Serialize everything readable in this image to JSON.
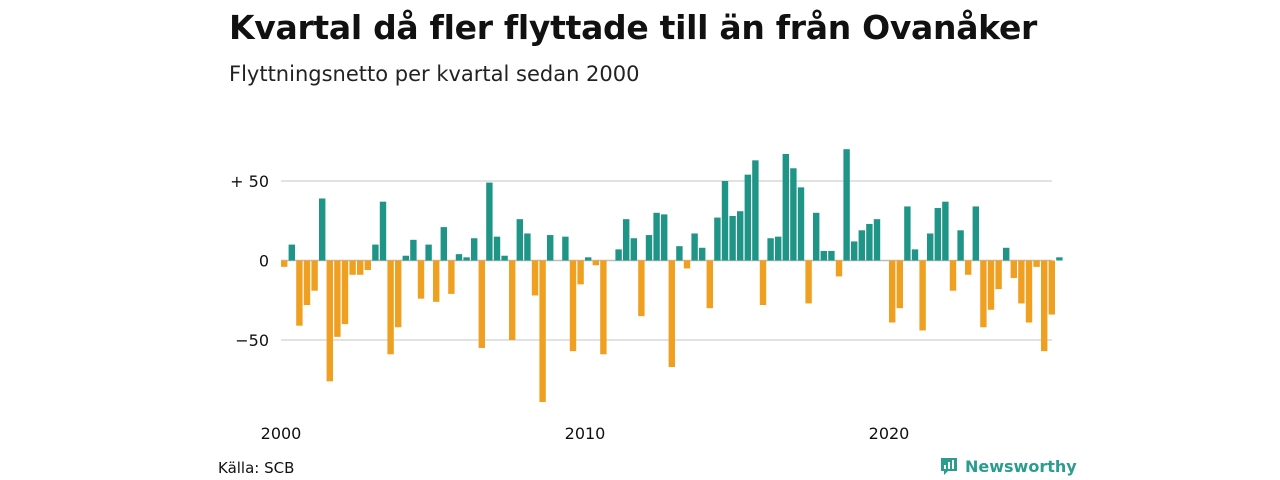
{
  "header": {
    "title": "Kvartal då fler flyttade till än från Ovanåker",
    "subtitle": "Flyttningsnetto per kvartal sedan 2000"
  },
  "footer": {
    "source": "Källa: SCB",
    "brand": "Newsworthy"
  },
  "colors": {
    "positive": "#1f9588",
    "negative": "#f0a020",
    "grid": "#d9d9d9",
    "brand": "#2a9d8f"
  },
  "chart_data": {
    "type": "bar",
    "start_year": 2000,
    "periods_per_year": 4,
    "values": [
      -4,
      10,
      -41,
      -28,
      -19,
      39,
      -76,
      -48,
      -40,
      -9,
      -9,
      -6,
      10,
      37,
      -59,
      -42,
      3,
      13,
      -24,
      10,
      -26,
      21,
      -21,
      4,
      2,
      14,
      -55,
      49,
      15,
      3,
      -50,
      26,
      17,
      -22,
      -89,
      16,
      0,
      15,
      -57,
      -15,
      2,
      -3,
      -59,
      0,
      7,
      26,
      14,
      -35,
      16,
      30,
      29,
      -67,
      9,
      -5,
      17,
      8,
      -30,
      27,
      50,
      28,
      31,
      54,
      63,
      -28,
      14,
      15,
      67,
      58,
      46,
      -27,
      30,
      6,
      6,
      -10,
      70,
      12,
      19,
      23,
      26,
      0,
      -39,
      -30,
      34,
      7,
      -44,
      17,
      33,
      37,
      -19,
      19,
      -9,
      34,
      -42,
      -31,
      -18,
      8,
      -11,
      -27,
      -39,
      -4,
      -57,
      -34,
      2
    ],
    "x_ticks": [
      "2000",
      "2010",
      "2020"
    ],
    "y_ticks": [
      {
        "value": 50,
        "label": "+ 50"
      },
      {
        "value": 0,
        "label": "0"
      },
      {
        "value": -50,
        "label": "−50"
      }
    ],
    "ylim": [
      -90,
      70
    ],
    "grid": true,
    "legend": "none"
  }
}
